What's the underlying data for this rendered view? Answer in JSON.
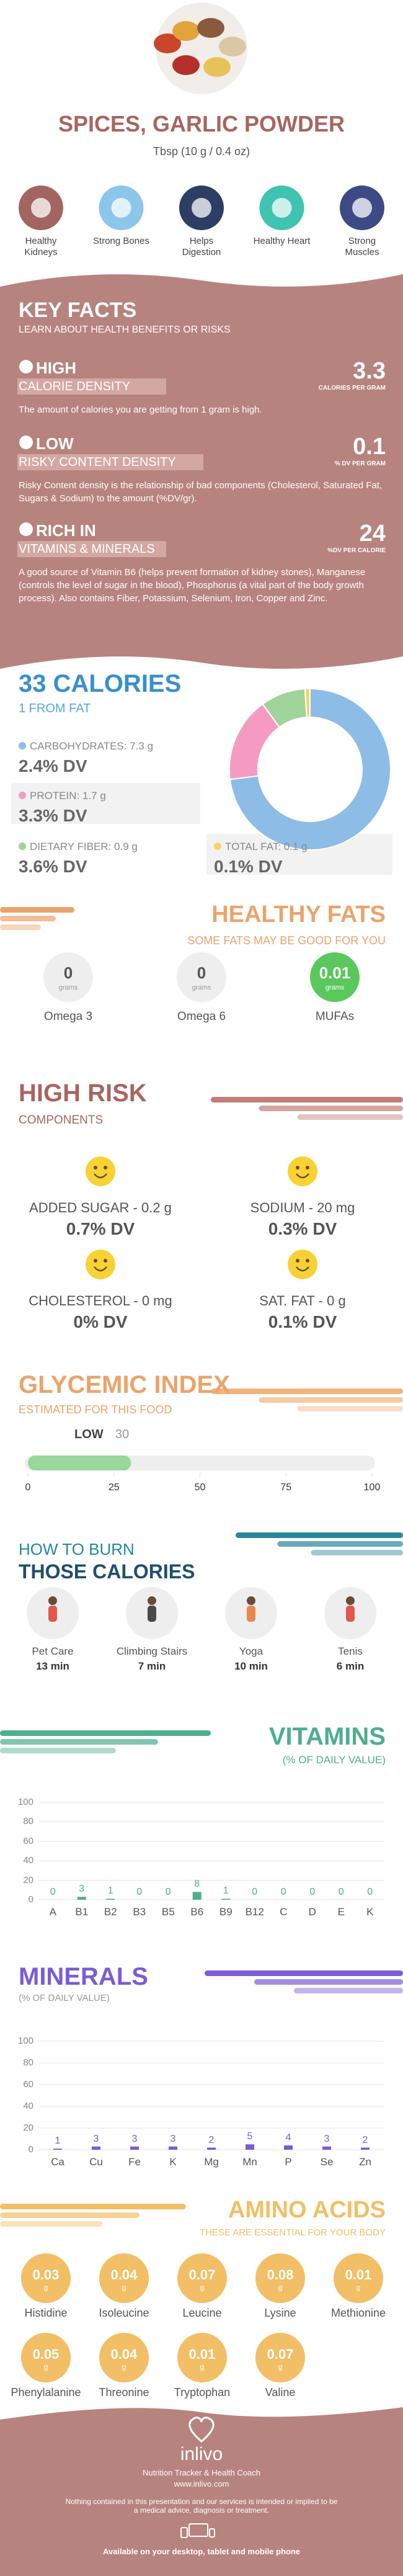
{
  "header": {
    "title": "SPICES, GARLIC POWDER",
    "serving": "Tbsp (10 g / 0.4 oz)"
  },
  "benefits": [
    "Healthy Kidneys",
    "Strong Bones",
    "Helps Digestion",
    "Healthy Heart",
    "Strong Muscles"
  ],
  "key_facts": {
    "title": "KEY FACTS",
    "subtitle": "LEARN ABOUT HEALTH BENEFITS OR RISKS",
    "items": [
      {
        "level": "HIGH",
        "label": "CALORIE DENSITY",
        "value": 3.3,
        "unit": "CALORIES PER GRAM",
        "text": "The amount of calories you are getting from 1 gram is high."
      },
      {
        "level": "LOW",
        "label": "RISKY CONTENT DENSITY",
        "value": 0.1,
        "unit": "% DV PER GRAM",
        "text": "Risky Content density is the relationship of bad components (Cholesterol, Saturated Fat, Sugars & Sodium) to the amount (%DV/gr)."
      },
      {
        "level": "RICH IN",
        "label": "VITAMINS & MINERALS",
        "value": 24,
        "unit": "%DV PER CALORIE",
        "text": "A good source of Vitamin B6 (helps prevent formation of kidney stones), Manganese (controls the level of sugar in the blood), Phosphorus (a vital part of the body growth process). Also contains Fiber, Potassium, Selenium, Iron, Copper and Zinc."
      }
    ]
  },
  "calories": {
    "title": "33 CALORIES",
    "subtitle": "1 FROM FAT",
    "nutrients": [
      {
        "label": "CARBOHYDRATES: 7.3 g",
        "dv": "2.4% DV"
      },
      {
        "label": "PROTEIN: 1.7 g",
        "dv": "3.3% DV"
      },
      {
        "label": "DIETARY FIBER: 0.9 g",
        "dv": "3.6% DV"
      },
      {
        "label": "TOTAL FAT: 0.1 g",
        "dv": "0.1% DV"
      }
    ]
  },
  "healthy_fats": {
    "title": "HEALTHY FATS",
    "subtitle": "SOME FATS MAY BE GOOD FOR YOU",
    "items": [
      {
        "value": 0,
        "unit": "grams",
        "name": "Omega 3"
      },
      {
        "value": 0,
        "unit": "grams",
        "name": "Omega 6"
      },
      {
        "value": 0.01,
        "unit": "grams",
        "name": "MUFAs"
      }
    ]
  },
  "high_risk": {
    "title": "HIGH RISK",
    "subtitle": "COMPONENTS",
    "items": [
      {
        "label": "ADDED SUGAR - 0.2 g",
        "dv": "0.7% DV"
      },
      {
        "label": "SODIUM - 20 mg",
        "dv": "0.3% DV"
      },
      {
        "label": "CHOLESTEROL - 0 mg",
        "dv": "0% DV"
      },
      {
        "label": "SAT. FAT - 0 g",
        "dv": "0.1% DV"
      }
    ]
  },
  "burn": {
    "title": "HOW TO BURN",
    "subtitle": "THOSE CALORIES",
    "items": [
      {
        "activity": "Pet Care",
        "time": "13 min"
      },
      {
        "activity": "Climbing Stairs",
        "time": "7 min"
      },
      {
        "activity": "Yoga",
        "time": "10 min"
      },
      {
        "activity": "Tenis",
        "time": "6 min"
      }
    ]
  },
  "amino_acids": {
    "title": "AMINO ACIDS",
    "subtitle": "THESE ARE ESSENTIAL FOR YOUR BODY",
    "items": [
      {
        "name": "Histidine",
        "value": 0.03,
        "unit": "g"
      },
      {
        "name": "Isoleucine",
        "value": 0.04,
        "unit": "g"
      },
      {
        "name": "Leucine",
        "value": 0.07,
        "unit": "g"
      },
      {
        "name": "Lysine",
        "value": 0.08,
        "unit": "g"
      },
      {
        "name": "Methionine",
        "value": 0.01,
        "unit": "g"
      },
      {
        "name": "Phenylalanine",
        "value": 0.05,
        "unit": "g"
      },
      {
        "name": "Threonine",
        "value": 0.04,
        "unit": "g"
      },
      {
        "name": "Tryptophan",
        "value": 0.01,
        "unit": "g"
      },
      {
        "name": "Valine",
        "value": 0.07,
        "unit": "g"
      }
    ]
  },
  "footer": {
    "brand": "inlivo",
    "tagline": "Nutrition Tracker & Health Coach",
    "url": "www.inlivo.com",
    "disclaimer": "Nothing contained in this presentation and our services is intended or implied to be a medical advice, diagnosis or treatment.",
    "availability": "Available on your desktop, tablet and mobile phone"
  },
  "chart_data": [
    {
      "type": "pie",
      "donut": true,
      "values": [
        7.3,
        1.7,
        0.9,
        0.1
      ],
      "colors": [
        "#8dbde6",
        "#f59bc1",
        "#9fd49b",
        "#f7d36b"
      ]
    },
    {
      "type": "gauge",
      "title": "GLYCEMIC INDEX",
      "subtitle": "ESTIMATED FOR THIS FOOD",
      "label": "LOW",
      "value": 30,
      "xlim": [
        0,
        100
      ],
      "xticks": [
        0,
        25,
        50,
        75,
        100
      ],
      "color": "#9ad79a"
    },
    {
      "type": "bar",
      "title": "VITAMINS",
      "subtitle": "(% OF DAILY VALUE)",
      "categories": [
        "A",
        "B1",
        "B2",
        "B3",
        "B5",
        "B6",
        "B9",
        "B12",
        "C",
        "D",
        "E",
        "K"
      ],
      "values": [
        0,
        3,
        1,
        0,
        0,
        8,
        1,
        0,
        0,
        0,
        0,
        0
      ],
      "ylim": [
        0,
        100
      ],
      "yticks": [
        0,
        20,
        40,
        60,
        80,
        100
      ],
      "grid": true,
      "color": "#4fae8f"
    },
    {
      "type": "bar",
      "title": "MINERALS",
      "subtitle": "(% OF DAILY VALUE)",
      "categories": [
        "Ca",
        "Cu",
        "Fe",
        "K",
        "Mg",
        "Mn",
        "P",
        "Se",
        "Zn"
      ],
      "values": [
        1,
        3,
        3,
        3,
        2,
        5,
        4,
        3,
        2
      ],
      "ylim": [
        0,
        100
      ],
      "yticks": [
        0,
        20,
        40,
        60,
        80,
        100
      ],
      "grid": true,
      "color": "#7b5cd6"
    }
  ]
}
